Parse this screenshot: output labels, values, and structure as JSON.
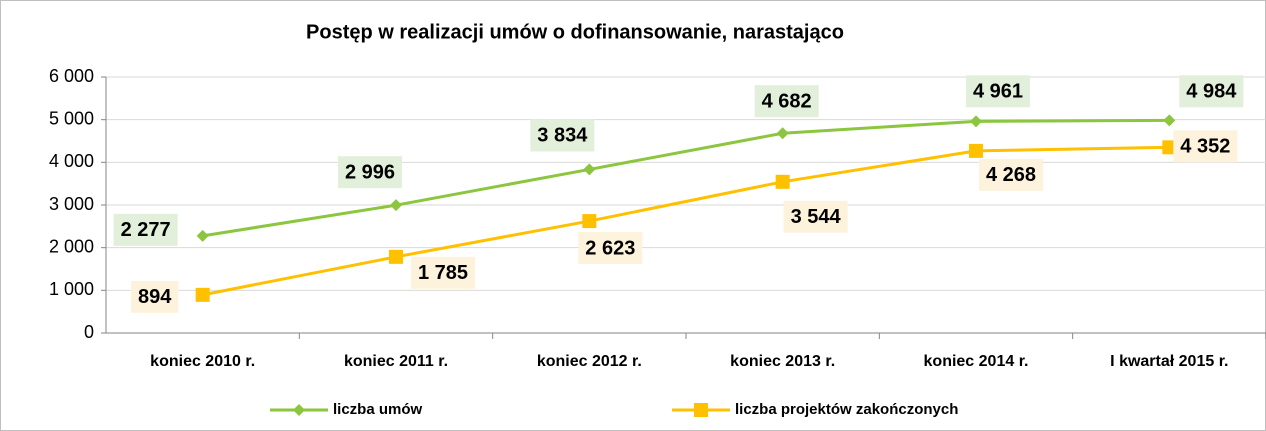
{
  "chart_data": {
    "type": "line",
    "title": "Postęp w realizacji umów o dofinansowanie, narastająco",
    "categories": [
      "koniec 2010 r.",
      "koniec 2011 r.",
      "koniec 2012 r.",
      "koniec 2013 r.",
      "koniec 2014 r.",
      "I kwartał 2015 r."
    ],
    "series": [
      {
        "name": "liczba umów",
        "color": "#8cc63f",
        "label_bg": "#e2efda",
        "marker": "diamond",
        "values": [
          2277,
          2996,
          3834,
          4682,
          4961,
          4984
        ],
        "value_labels": [
          "2 277",
          "2 996",
          "3 834",
          "4 682",
          "4 961",
          "4 984"
        ]
      },
      {
        "name": "liczba projektów zakończonych",
        "color": "#ffc000",
        "label_bg": "#fdf3dc",
        "marker": "square",
        "values": [
          894,
          1785,
          2623,
          3544,
          4268,
          4352
        ],
        "value_labels": [
          "894",
          "1 785",
          "2 623",
          "3 544",
          "4 268",
          "4 352"
        ]
      }
    ],
    "ylim": [
      0,
      6000
    ],
    "yticks": [
      0,
      {
        "value": 1000,
        "label": "1 000"
      },
      {
        "value": 2000,
        "label": "2 000"
      },
      {
        "value": 3000,
        "label": "3 000"
      },
      {
        "value": 4000,
        "label": "4 000"
      },
      {
        "value": 5000,
        "label": "5 000"
      },
      {
        "value": 6000,
        "label": "6 000"
      }
    ],
    "grid": true,
    "legend": "bottom"
  }
}
